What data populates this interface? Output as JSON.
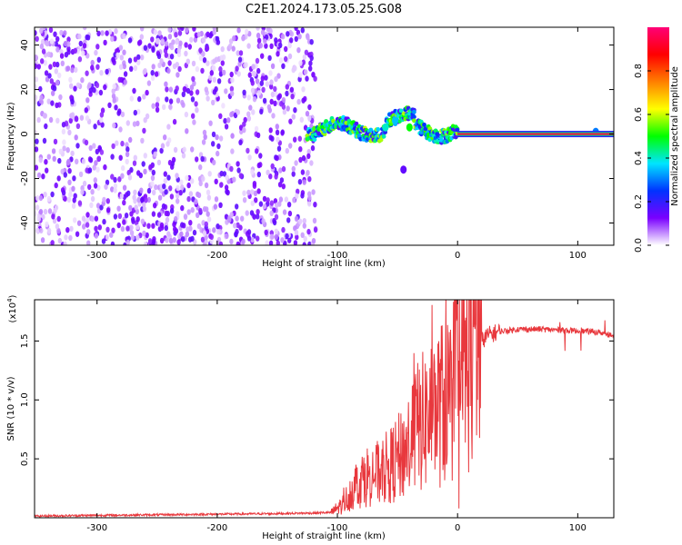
{
  "title": "C2E1.2024.173.05.25.G08",
  "chart_data": [
    {
      "type": "heatmap",
      "xlabel": "Height of straight line (km)",
      "ylabel": "Frequency (Hz)",
      "xlim": [
        -352,
        130
      ],
      "ylim": [
        -50,
        48
      ],
      "xticks": [
        -300,
        -200,
        -100,
        0,
        100
      ],
      "yticks": [
        -40,
        -20,
        0,
        20,
        40
      ],
      "colorbar": {
        "label": "Normalized spectral amplitude",
        "range": [
          0.0,
          1.0
        ],
        "ticks": [
          0.0,
          0.2,
          0.4,
          0.6,
          0.8
        ],
        "tick_labels": [
          "0.0",
          "0.2",
          "0.4",
          "0.6",
          "0.8"
        ],
        "colors": [
          "#ffffff",
          "#7a00ff",
          "#0033ff",
          "#00e5ff",
          "#00ff00",
          "#ffff00",
          "#ff7f00",
          "#ff0000",
          "#ff0077"
        ]
      },
      "signal_line": {
        "x_start": 0,
        "x_end": 130,
        "frequency": 0,
        "amplitude": 0.95
      },
      "blobs": [
        {
          "x": -52,
          "y": 6,
          "amplitude": 0.35
        },
        {
          "x": -40,
          "y": 3,
          "amplitude": 0.5
        },
        {
          "x": -60,
          "y": 3,
          "amplitude": 0.4
        },
        {
          "x": -45,
          "y": -16,
          "amplitude": 0.15
        },
        {
          "x": 115,
          "y": 1,
          "amplitude": 0.3
        }
      ]
    },
    {
      "type": "line",
      "xlabel": "Height of straight line (km)",
      "ylabel": "SNR (10 * v/v)",
      "multiplier_label": "(x10",
      "multiplier_exp": "4",
      "xlim": [
        -352,
        130
      ],
      "ylim": [
        0,
        18500
      ],
      "xticks": [
        -300,
        -200,
        -100,
        0,
        100
      ],
      "yticks": [
        5000,
        10000,
        15000
      ],
      "ytick_labels": [
        "0.5",
        "1.0",
        "1.5"
      ],
      "color": "#e8383d",
      "series": [
        {
          "x": [
            -352,
            -300,
            -250,
            -200,
            -150,
            -120,
            -105,
            -95,
            -85,
            -75,
            -65,
            -55,
            -45,
            -35,
            -25,
            -15,
            -5,
            5,
            15,
            25,
            35,
            50,
            70,
            90,
            110,
            120,
            130
          ],
          "y": [
            150,
            200,
            250,
            300,
            350,
            400,
            450,
            1200,
            2800,
            3600,
            3800,
            4500,
            5500,
            7500,
            8500,
            9500,
            10500,
            12500,
            14500,
            15500,
            15800,
            16000,
            16000,
            15900,
            15800,
            15700,
            15400
          ]
        }
      ]
    }
  ]
}
